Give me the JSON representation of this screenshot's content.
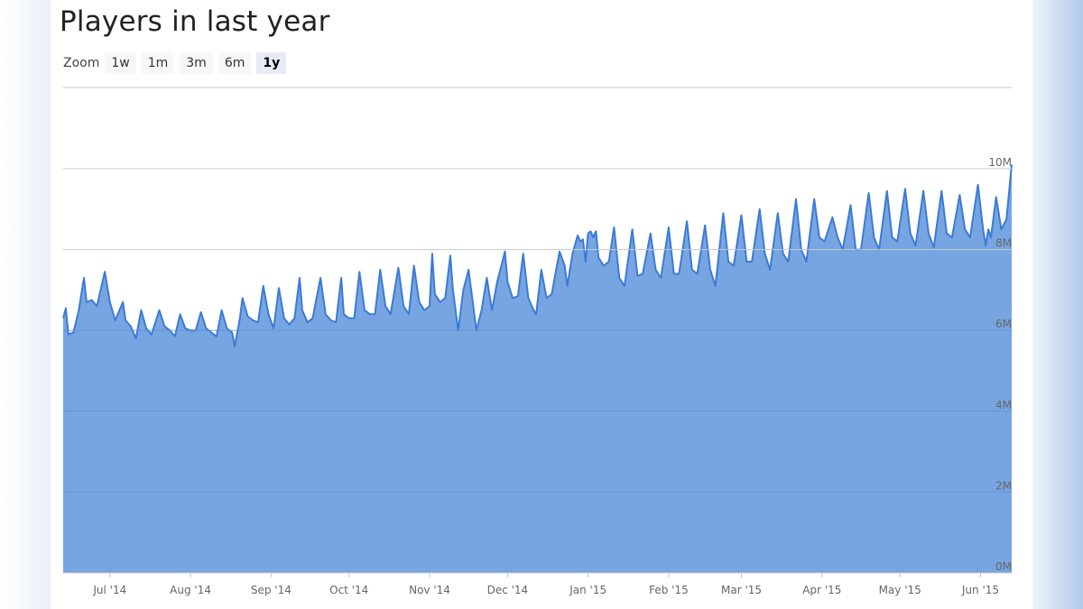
{
  "title": "Players in last year",
  "zoom": {
    "label": "Zoom",
    "buttons": [
      {
        "label": "1w",
        "active": false
      },
      {
        "label": "1m",
        "active": false
      },
      {
        "label": "3m",
        "active": false
      },
      {
        "label": "6m",
        "active": false
      },
      {
        "label": "1y",
        "active": true
      }
    ]
  },
  "colors": {
    "area_fill": "#77a5e2",
    "line": "#3c7bd4",
    "grid": "#c8c8c8",
    "axis_text": "#666666"
  },
  "chart_data": {
    "type": "area",
    "title": "Players in last year",
    "xlabel": "",
    "ylabel": "",
    "x_range": [
      "2014-06-13",
      "2015-06-13"
    ],
    "ylim": [
      0,
      10000000
    ],
    "y_ticks": [
      0,
      2000000,
      4000000,
      6000000,
      8000000,
      10000000
    ],
    "y_tick_labels": [
      "0M",
      "2M",
      "4M",
      "6M",
      "8M",
      "10M"
    ],
    "x_ticks": [
      {
        "label": "Jul '14",
        "date": "2014-07-01"
      },
      {
        "label": "Aug '14",
        "date": "2014-08-01"
      },
      {
        "label": "Sep '14",
        "date": "2014-09-01"
      },
      {
        "label": "Oct '14",
        "date": "2014-10-01"
      },
      {
        "label": "Nov '14",
        "date": "2014-11-01"
      },
      {
        "label": "Dec '14",
        "date": "2014-12-01"
      },
      {
        "label": "Jan '15",
        "date": "2015-01-01"
      },
      {
        "label": "Feb '15",
        "date": "2015-02-01"
      },
      {
        "label": "Mar '15",
        "date": "2015-03-01"
      },
      {
        "label": "Apr '15",
        "date": "2015-04-01"
      },
      {
        "label": "May '15",
        "date": "2015-05-01"
      },
      {
        "label": "Jun '15",
        "date": "2015-06-01"
      }
    ],
    "grid": true,
    "legend": "none",
    "series": [
      {
        "points": [
          [
            "2014-06-13",
            6300000
          ],
          [
            "2014-06-14",
            6550000
          ],
          [
            "2014-06-15",
            5900000
          ],
          [
            "2014-06-17",
            5950000
          ],
          [
            "2014-06-19",
            6500000
          ],
          [
            "2014-06-21",
            7300000
          ],
          [
            "2014-06-22",
            6700000
          ],
          [
            "2014-06-24",
            6750000
          ],
          [
            "2014-06-26",
            6600000
          ],
          [
            "2014-06-29",
            7450000
          ],
          [
            "2014-07-01",
            6700000
          ],
          [
            "2014-07-03",
            6250000
          ],
          [
            "2014-07-06",
            6700000
          ],
          [
            "2014-07-07",
            6250000
          ],
          [
            "2014-07-09",
            6100000
          ],
          [
            "2014-07-11",
            5800000
          ],
          [
            "2014-07-13",
            6500000
          ],
          [
            "2014-07-15",
            6050000
          ],
          [
            "2014-07-17",
            5900000
          ],
          [
            "2014-07-20",
            6500000
          ],
          [
            "2014-07-22",
            6100000
          ],
          [
            "2014-07-24",
            6000000
          ],
          [
            "2014-07-26",
            5850000
          ],
          [
            "2014-07-28",
            6400000
          ],
          [
            "2014-07-30",
            6050000
          ],
          [
            "2014-08-01",
            6000000
          ],
          [
            "2014-08-03",
            6000000
          ],
          [
            "2014-08-05",
            6450000
          ],
          [
            "2014-08-07",
            6050000
          ],
          [
            "2014-08-09",
            5950000
          ],
          [
            "2014-08-11",
            5850000
          ],
          [
            "2014-08-13",
            6500000
          ],
          [
            "2014-08-15",
            6050000
          ],
          [
            "2014-08-17",
            5950000
          ],
          [
            "2014-08-18",
            5600000
          ],
          [
            "2014-08-20",
            6300000
          ],
          [
            "2014-08-21",
            6800000
          ],
          [
            "2014-08-23",
            6350000
          ],
          [
            "2014-08-25",
            6250000
          ],
          [
            "2014-08-27",
            6200000
          ],
          [
            "2014-08-29",
            7100000
          ],
          [
            "2014-08-31",
            6400000
          ],
          [
            "2014-09-02",
            6050000
          ],
          [
            "2014-09-04",
            7050000
          ],
          [
            "2014-09-06",
            6300000
          ],
          [
            "2014-09-08",
            6150000
          ],
          [
            "2014-09-10",
            6300000
          ],
          [
            "2014-09-12",
            7300000
          ],
          [
            "2014-09-13",
            6500000
          ],
          [
            "2014-09-15",
            6200000
          ],
          [
            "2014-09-17",
            6300000
          ],
          [
            "2014-09-20",
            7300000
          ],
          [
            "2014-09-22",
            6400000
          ],
          [
            "2014-09-24",
            6250000
          ],
          [
            "2014-09-26",
            6200000
          ],
          [
            "2014-09-28",
            7300000
          ],
          [
            "2014-09-29",
            6400000
          ],
          [
            "2014-10-01",
            6300000
          ],
          [
            "2014-10-03",
            6300000
          ],
          [
            "2014-10-05",
            7450000
          ],
          [
            "2014-10-07",
            6500000
          ],
          [
            "2014-10-09",
            6400000
          ],
          [
            "2014-10-11",
            6400000
          ],
          [
            "2014-10-13",
            7500000
          ],
          [
            "2014-10-15",
            6600000
          ],
          [
            "2014-10-17",
            6400000
          ],
          [
            "2014-10-20",
            7550000
          ],
          [
            "2014-10-22",
            6600000
          ],
          [
            "2014-10-24",
            6400000
          ],
          [
            "2014-10-26",
            7600000
          ],
          [
            "2014-10-28",
            6700000
          ],
          [
            "2014-10-30",
            6500000
          ],
          [
            "2014-11-01",
            6600000
          ],
          [
            "2014-11-02",
            7900000
          ],
          [
            "2014-11-03",
            6900000
          ],
          [
            "2014-11-05",
            6700000
          ],
          [
            "2014-11-07",
            6800000
          ],
          [
            "2014-11-09",
            7850000
          ],
          [
            "2014-11-10",
            7000000
          ],
          [
            "2014-11-12",
            6000000
          ],
          [
            "2014-11-14",
            7000000
          ],
          [
            "2014-11-16",
            7500000
          ],
          [
            "2014-11-18",
            6500000
          ],
          [
            "2014-11-19",
            6000000
          ],
          [
            "2014-11-21",
            6500000
          ],
          [
            "2014-11-23",
            7300000
          ],
          [
            "2014-11-25",
            6500000
          ],
          [
            "2014-11-27",
            7200000
          ],
          [
            "2014-11-30",
            7950000
          ],
          [
            "2014-12-01",
            7200000
          ],
          [
            "2014-12-03",
            6800000
          ],
          [
            "2014-12-05",
            6850000
          ],
          [
            "2014-12-07",
            7900000
          ],
          [
            "2014-12-09",
            6800000
          ],
          [
            "2014-12-11",
            6500000
          ],
          [
            "2014-12-12",
            6400000
          ],
          [
            "2014-12-14",
            7500000
          ],
          [
            "2014-12-16",
            6800000
          ],
          [
            "2014-12-18",
            6900000
          ],
          [
            "2014-12-21",
            7950000
          ],
          [
            "2014-12-23",
            7600000
          ],
          [
            "2014-12-24",
            7100000
          ],
          [
            "2014-12-26",
            7900000
          ],
          [
            "2014-12-28",
            8350000
          ],
          [
            "2014-12-29",
            8200000
          ],
          [
            "2014-12-30",
            8250000
          ],
          [
            "2014-12-31",
            7700000
          ],
          [
            "2015-01-01",
            8400000
          ],
          [
            "2015-01-02",
            8450000
          ],
          [
            "2015-01-03",
            8300000
          ],
          [
            "2015-01-04",
            8450000
          ],
          [
            "2015-01-05",
            7800000
          ],
          [
            "2015-01-07",
            7600000
          ],
          [
            "2015-01-09",
            7700000
          ],
          [
            "2015-01-11",
            8550000
          ],
          [
            "2015-01-13",
            7300000
          ],
          [
            "2015-01-15",
            7100000
          ],
          [
            "2015-01-18",
            8500000
          ],
          [
            "2015-01-20",
            7350000
          ],
          [
            "2015-01-22",
            7400000
          ],
          [
            "2015-01-25",
            8400000
          ],
          [
            "2015-01-27",
            7500000
          ],
          [
            "2015-01-29",
            7300000
          ],
          [
            "2015-02-01",
            8550000
          ],
          [
            "2015-02-03",
            7400000
          ],
          [
            "2015-02-05",
            7400000
          ],
          [
            "2015-02-08",
            8700000
          ],
          [
            "2015-02-10",
            7500000
          ],
          [
            "2015-02-12",
            7400000
          ],
          [
            "2015-02-15",
            8600000
          ],
          [
            "2015-02-17",
            7500000
          ],
          [
            "2015-02-19",
            7100000
          ],
          [
            "2015-02-22",
            8900000
          ],
          [
            "2015-02-24",
            7700000
          ],
          [
            "2015-02-26",
            7600000
          ],
          [
            "2015-03-01",
            8850000
          ],
          [
            "2015-03-03",
            7700000
          ],
          [
            "2015-03-05",
            7700000
          ],
          [
            "2015-03-08",
            9000000
          ],
          [
            "2015-03-10",
            7900000
          ],
          [
            "2015-03-12",
            7500000
          ],
          [
            "2015-03-15",
            8900000
          ],
          [
            "2015-03-17",
            7900000
          ],
          [
            "2015-03-19",
            7700000
          ],
          [
            "2015-03-22",
            9250000
          ],
          [
            "2015-03-24",
            8000000
          ],
          [
            "2015-03-26",
            7700000
          ],
          [
            "2015-03-29",
            9250000
          ],
          [
            "2015-03-31",
            8300000
          ],
          [
            "2015-04-02",
            8200000
          ],
          [
            "2015-04-05",
            8800000
          ],
          [
            "2015-04-07",
            8300000
          ],
          [
            "2015-04-09",
            8000000
          ],
          [
            "2015-04-12",
            9100000
          ],
          [
            "2015-04-14",
            8000000
          ],
          [
            "2015-04-16",
            8000000
          ],
          [
            "2015-04-19",
            9400000
          ],
          [
            "2015-04-21",
            8300000
          ],
          [
            "2015-04-23",
            8000000
          ],
          [
            "2015-04-26",
            9450000
          ],
          [
            "2015-04-28",
            8300000
          ],
          [
            "2015-04-30",
            8200000
          ],
          [
            "2015-05-03",
            9500000
          ],
          [
            "2015-05-05",
            8400000
          ],
          [
            "2015-05-07",
            8100000
          ],
          [
            "2015-05-10",
            9450000
          ],
          [
            "2015-05-12",
            8400000
          ],
          [
            "2015-05-14",
            8050000
          ],
          [
            "2015-05-17",
            9450000
          ],
          [
            "2015-05-19",
            8400000
          ],
          [
            "2015-05-21",
            8300000
          ],
          [
            "2015-05-24",
            9350000
          ],
          [
            "2015-05-26",
            8500000
          ],
          [
            "2015-05-28",
            8300000
          ],
          [
            "2015-05-31",
            9600000
          ],
          [
            "2015-06-02",
            8500000
          ],
          [
            "2015-06-03",
            8100000
          ],
          [
            "2015-06-04",
            8500000
          ],
          [
            "2015-06-05",
            8300000
          ],
          [
            "2015-06-07",
            9300000
          ],
          [
            "2015-06-09",
            8500000
          ],
          [
            "2015-06-11",
            8750000
          ],
          [
            "2015-06-13",
            10100000
          ]
        ]
      }
    ]
  }
}
